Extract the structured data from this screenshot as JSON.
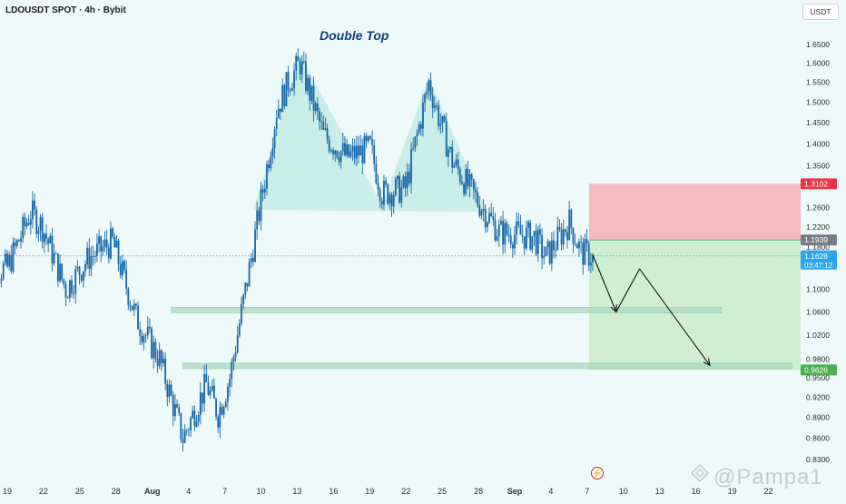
{
  "header": {
    "symbol": "LDOUSDT SPOT · 4h · Bybit",
    "currency": "USDT"
  },
  "watermark": "@Pampa1",
  "colors": {
    "background": "#eefaf9",
    "candle": "#1565a8",
    "pattern_fill": "#bfe8e3",
    "stop_zone": "#f4b6bd",
    "target_zone": "#cdeecf",
    "support_band": "#a9d6bd",
    "stop_label": "#e53644",
    "entry_label": "#787b86",
    "current_label": "#2aa5ee",
    "target_label": "#4caf50"
  },
  "chart_data": {
    "type": "candlestick",
    "title": "Double Top",
    "timeframe": "4h",
    "y_axis": {
      "ticks": [
        1.65,
        1.6,
        1.55,
        1.5,
        1.45,
        1.4,
        1.35,
        1.26,
        1.22,
        1.18,
        1.1,
        1.06,
        1.02,
        0.98,
        0.95,
        0.92,
        0.89,
        0.86,
        0.83
      ],
      "tick_labels": [
        "1.6500",
        "1.6000",
        "1.5500",
        "1.5000",
        "1.4500",
        "1.4000",
        "1.3500",
        "1.2600",
        "1.2200",
        "1.1800",
        "1.1000",
        "1.0600",
        "1.0200",
        "0.9800",
        "0.9500",
        "0.9200",
        "0.8900",
        "0.8600",
        "0.8300"
      ],
      "scale": "log",
      "range": [
        0.81,
        1.72
      ]
    },
    "x_axis": {
      "tick_labels": [
        "19",
        "22",
        "25",
        "28",
        "Aug",
        "4",
        "7",
        "10",
        "13",
        "16",
        "19",
        "22",
        "25",
        "28",
        "Sep",
        "4",
        "7",
        "10",
        "13",
        "16",
        "19",
        "22"
      ],
      "bold_labels": [
        "Aug",
        "Sep"
      ],
      "first_date": "2024-07-19",
      "last_date": "2024-09-22"
    },
    "price_path": [
      {
        "date": "2024-07-17",
        "close": 1.13
      },
      {
        "date": "2024-07-19",
        "close": 1.14
      },
      {
        "date": "2024-07-21",
        "close": 1.25
      },
      {
        "date": "2024-07-22",
        "close": 1.22
      },
      {
        "date": "2024-07-24",
        "close": 1.1
      },
      {
        "date": "2024-07-26",
        "close": 1.16
      },
      {
        "date": "2024-07-28",
        "close": 1.19
      },
      {
        "date": "2024-07-30",
        "close": 1.05
      },
      {
        "date": "2024-08-01",
        "close": 0.98
      },
      {
        "date": "2024-08-03",
        "close": 0.86
      },
      {
        "date": "2024-08-05",
        "close": 0.94
      },
      {
        "date": "2024-08-06",
        "close": 0.895
      },
      {
        "date": "2024-08-07",
        "close": 0.95
      },
      {
        "date": "2024-08-09",
        "close": 1.18
      },
      {
        "date": "2024-08-11",
        "close": 1.48
      },
      {
        "date": "2024-08-12",
        "close": 1.55
      },
      {
        "date": "2024-08-13",
        "close": 1.6
      },
      {
        "date": "2024-08-15",
        "close": 1.42
      },
      {
        "date": "2024-08-17",
        "close": 1.37
      },
      {
        "date": "2024-08-19",
        "close": 1.39
      },
      {
        "date": "2024-08-20",
        "close": 1.29
      },
      {
        "date": "2024-08-22",
        "close": 1.3
      },
      {
        "date": "2024-08-24",
        "close": 1.55
      },
      {
        "date": "2024-08-25",
        "close": 1.45
      },
      {
        "date": "2024-08-26",
        "close": 1.36
      },
      {
        "date": "2024-08-28",
        "close": 1.28
      },
      {
        "date": "2024-08-30",
        "close": 1.21
      },
      {
        "date": "2024-09-02",
        "close": 1.2
      },
      {
        "date": "2024-09-03",
        "close": 1.16
      },
      {
        "date": "2024-09-05",
        "close": 1.23
      },
      {
        "date": "2024-09-06",
        "close": 1.17
      },
      {
        "date": "2024-09-07",
        "close": 1.163
      }
    ],
    "pattern": {
      "label": "Double Top",
      "points": [
        {
          "date": "2024-08-09",
          "price": 1.255
        },
        {
          "date": "2024-08-13",
          "price": 1.62
        },
        {
          "date": "2024-08-20",
          "price": 1.265
        },
        {
          "date": "2024-08-24",
          "price": 1.56
        },
        {
          "date": "2024-08-29",
          "price": 1.25
        }
      ]
    },
    "levels": {
      "stop": 1.3102,
      "entry": 1.1939,
      "current": 1.1628,
      "countdown": "03:47:12",
      "target": 0.9626
    },
    "support_bands": [
      {
        "price": 1.063,
        "from": "2024-08-02",
        "to": "2024-09-18"
      },
      {
        "price": 0.969,
        "from": "2024-08-03",
        "to": "2024-09-24"
      }
    ],
    "projection": [
      {
        "date": "2024-09-07",
        "price": 1.165
      },
      {
        "date": "2024-09-09",
        "price": 1.06
      },
      {
        "date": "2024-09-11",
        "price": 1.138
      },
      {
        "date": "2024-09-17",
        "price": 0.97
      }
    ],
    "legend": "none",
    "grid": false
  }
}
